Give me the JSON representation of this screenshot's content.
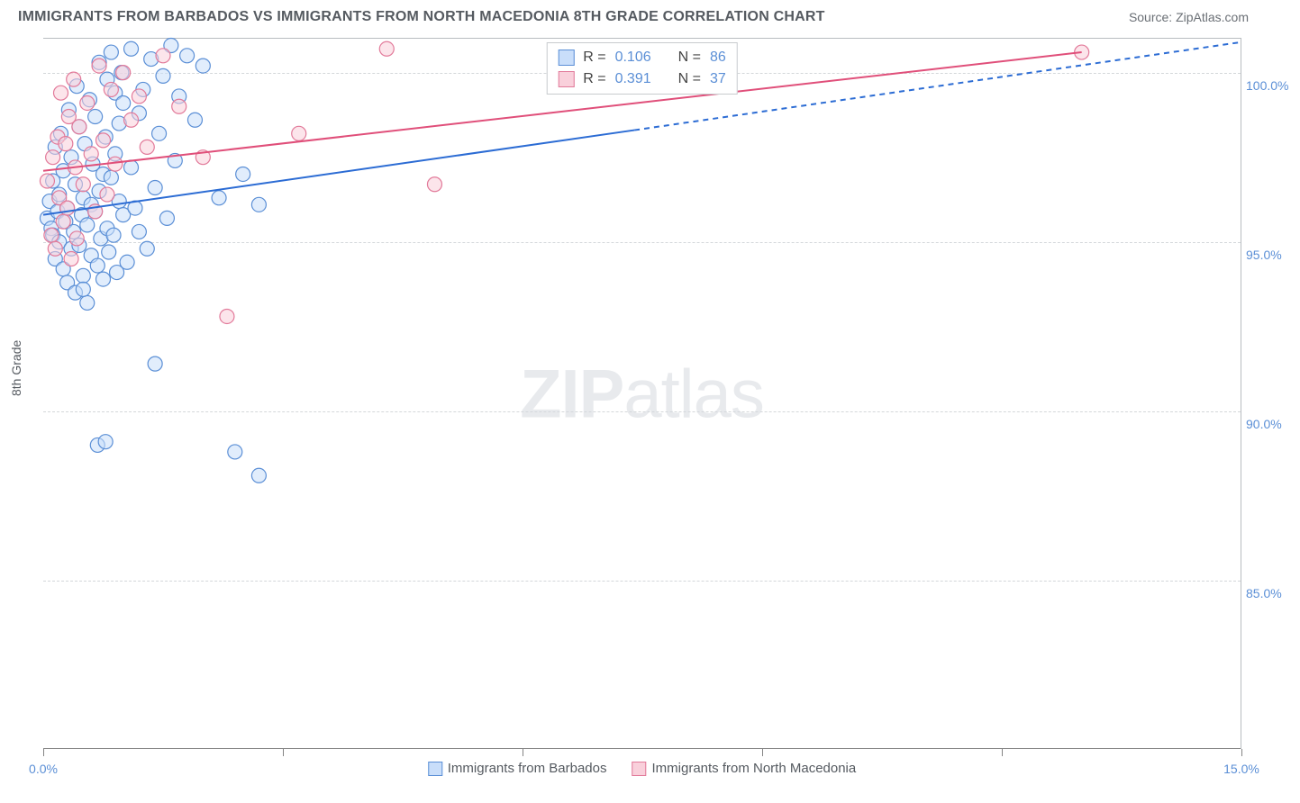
{
  "title": "IMMIGRANTS FROM BARBADOS VS IMMIGRANTS FROM NORTH MACEDONIA 8TH GRADE CORRELATION CHART",
  "source_label": "Source: ZipAtlas.com",
  "watermark_bold": "ZIP",
  "watermark_light": "atlas",
  "y_axis_label": "8th Grade",
  "chart": {
    "type": "scatter",
    "xlim": [
      0.0,
      15.0
    ],
    "ylim": [
      80.0,
      101.0
    ],
    "xtick_positions": [
      0.0,
      3.0,
      6.0,
      9.0,
      12.0,
      15.0
    ],
    "xtick_labels_shown": {
      "0.0": "0.0%",
      "15.0": "15.0%"
    },
    "ytick_positions": [
      85.0,
      90.0,
      95.0,
      100.0
    ],
    "ytick_labels": [
      "85.0%",
      "90.0%",
      "95.0%",
      "100.0%"
    ],
    "grid_color": "#d4d7da",
    "axis_color": "#838383",
    "background_color": "#ffffff",
    "tick_label_color": "#5b8fd6",
    "series": [
      {
        "name": "Immigrants from Barbados",
        "marker_fill": "#c9defa",
        "marker_stroke": "#5b8fd6",
        "marker_radius": 8,
        "fill_opacity": 0.55,
        "line_color": "#2c6cd4",
        "line_width": 2,
        "trend_start": [
          0.0,
          95.8
        ],
        "trend_solid_end": [
          7.4,
          98.3
        ],
        "trend_dashed_end": [
          15.0,
          100.9
        ],
        "R": "0.106",
        "N": "86",
        "points": [
          [
            0.05,
            95.7
          ],
          [
            0.08,
            96.2
          ],
          [
            0.1,
            95.4
          ],
          [
            0.12,
            96.8
          ],
          [
            0.12,
            95.2
          ],
          [
            0.15,
            94.5
          ],
          [
            0.15,
            97.8
          ],
          [
            0.18,
            95.9
          ],
          [
            0.2,
            95.0
          ],
          [
            0.2,
            96.4
          ],
          [
            0.22,
            98.2
          ],
          [
            0.25,
            94.2
          ],
          [
            0.25,
            97.1
          ],
          [
            0.28,
            95.6
          ],
          [
            0.3,
            96.0
          ],
          [
            0.3,
            93.8
          ],
          [
            0.32,
            98.9
          ],
          [
            0.35,
            94.8
          ],
          [
            0.35,
            97.5
          ],
          [
            0.38,
            95.3
          ],
          [
            0.4,
            93.5
          ],
          [
            0.4,
            96.7
          ],
          [
            0.42,
            99.6
          ],
          [
            0.45,
            94.9
          ],
          [
            0.45,
            98.4
          ],
          [
            0.48,
            95.8
          ],
          [
            0.5,
            96.3
          ],
          [
            0.5,
            94.0
          ],
          [
            0.52,
            97.9
          ],
          [
            0.55,
            95.5
          ],
          [
            0.55,
            93.2
          ],
          [
            0.58,
            99.2
          ],
          [
            0.6,
            96.1
          ],
          [
            0.6,
            94.6
          ],
          [
            0.62,
            97.3
          ],
          [
            0.65,
            95.9
          ],
          [
            0.65,
            98.7
          ],
          [
            0.68,
            94.3
          ],
          [
            0.7,
            96.5
          ],
          [
            0.7,
            100.3
          ],
          [
            0.72,
            95.1
          ],
          [
            0.75,
            97.0
          ],
          [
            0.75,
            93.9
          ],
          [
            0.78,
            98.1
          ],
          [
            0.8,
            95.4
          ],
          [
            0.8,
            99.8
          ],
          [
            0.82,
            94.7
          ],
          [
            0.85,
            96.9
          ],
          [
            0.85,
            100.6
          ],
          [
            0.88,
            95.2
          ],
          [
            0.9,
            97.6
          ],
          [
            0.9,
            99.4
          ],
          [
            0.92,
            94.1
          ],
          [
            0.95,
            98.5
          ],
          [
            0.95,
            96.2
          ],
          [
            0.98,
            100.0
          ],
          [
            1.0,
            95.8
          ],
          [
            1.0,
            99.1
          ],
          [
            1.05,
            94.4
          ],
          [
            1.1,
            97.2
          ],
          [
            1.1,
            100.7
          ],
          [
            1.15,
            96.0
          ],
          [
            1.2,
            98.8
          ],
          [
            1.2,
            95.3
          ],
          [
            1.25,
            99.5
          ],
          [
            1.3,
            94.8
          ],
          [
            1.35,
            100.4
          ],
          [
            1.4,
            96.6
          ],
          [
            1.45,
            98.2
          ],
          [
            1.5,
            99.9
          ],
          [
            1.55,
            95.7
          ],
          [
            1.6,
            100.8
          ],
          [
            1.65,
            97.4
          ],
          [
            1.7,
            99.3
          ],
          [
            1.8,
            100.5
          ],
          [
            1.9,
            98.6
          ],
          [
            2.0,
            100.2
          ],
          [
            2.2,
            96.3
          ],
          [
            2.5,
            97.0
          ],
          [
            2.7,
            96.1
          ],
          [
            2.4,
            88.8
          ],
          [
            2.7,
            88.1
          ],
          [
            1.4,
            91.4
          ],
          [
            0.68,
            89.0
          ],
          [
            0.78,
            89.1
          ],
          [
            0.5,
            93.6
          ]
        ]
      },
      {
        "name": "Immigrants from North Macedonia",
        "marker_fill": "#f9d0db",
        "marker_stroke": "#e27a9a",
        "marker_radius": 8,
        "fill_opacity": 0.55,
        "line_color": "#e04f7a",
        "line_width": 2,
        "trend_start": [
          0.0,
          97.1
        ],
        "trend_solid_end": [
          13.0,
          100.6
        ],
        "R": "0.391",
        "N": "37",
        "points": [
          [
            0.05,
            96.8
          ],
          [
            0.1,
            95.2
          ],
          [
            0.12,
            97.5
          ],
          [
            0.15,
            94.8
          ],
          [
            0.18,
            98.1
          ],
          [
            0.2,
            96.3
          ],
          [
            0.22,
            99.4
          ],
          [
            0.25,
            95.6
          ],
          [
            0.28,
            97.9
          ],
          [
            0.3,
            96.0
          ],
          [
            0.32,
            98.7
          ],
          [
            0.35,
            94.5
          ],
          [
            0.38,
            99.8
          ],
          [
            0.4,
            97.2
          ],
          [
            0.42,
            95.1
          ],
          [
            0.45,
            98.4
          ],
          [
            0.5,
            96.7
          ],
          [
            0.55,
            99.1
          ],
          [
            0.6,
            97.6
          ],
          [
            0.65,
            95.9
          ],
          [
            0.7,
            100.2
          ],
          [
            0.75,
            98.0
          ],
          [
            0.8,
            96.4
          ],
          [
            0.85,
            99.5
          ],
          [
            0.9,
            97.3
          ],
          [
            1.0,
            100.0
          ],
          [
            1.1,
            98.6
          ],
          [
            1.2,
            99.3
          ],
          [
            1.3,
            97.8
          ],
          [
            1.5,
            100.5
          ],
          [
            1.7,
            99.0
          ],
          [
            2.0,
            97.5
          ],
          [
            2.3,
            92.8
          ],
          [
            3.2,
            98.2
          ],
          [
            4.3,
            100.7
          ],
          [
            4.9,
            96.7
          ],
          [
            13.0,
            100.6
          ]
        ]
      }
    ]
  },
  "stats_box": {
    "rows": [
      {
        "swatch_fill": "#c9defa",
        "swatch_stroke": "#5b8fd6",
        "r_label": "R =",
        "r_val": "0.106",
        "n_label": "N =",
        "n_val": "86"
      },
      {
        "swatch_fill": "#f9d0db",
        "swatch_stroke": "#e27a9a",
        "r_label": "R =",
        "r_val": "0.391",
        "n_label": "N =",
        "n_val": "37"
      }
    ]
  },
  "legend": {
    "items": [
      {
        "swatch_fill": "#c9defa",
        "swatch_stroke": "#5b8fd6",
        "label": "Immigrants from Barbados"
      },
      {
        "swatch_fill": "#f9d0db",
        "swatch_stroke": "#e27a9a",
        "label": "Immigrants from North Macedonia"
      }
    ]
  }
}
